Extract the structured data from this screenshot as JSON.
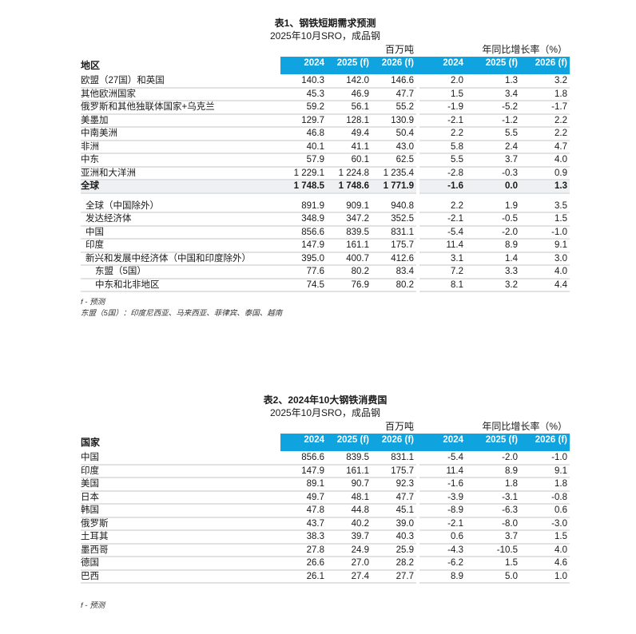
{
  "table1": {
    "title": "表1、钢铁短期需求预测",
    "subtitle": "2025年10月SRO，成品钢",
    "unit_volume": "百万吨",
    "unit_growth": "年同比增长率（%）",
    "label_header": "地区",
    "columns": [
      "2024",
      "2025 (f)",
      "2026 (f)",
      "2024",
      "2025 (f)",
      "2026 (f)"
    ],
    "rows": [
      {
        "label": "欧盟（27国）和英国",
        "values": [
          "140.3",
          "142.0",
          "146.6",
          "2.0",
          "1.3",
          "3.2"
        ]
      },
      {
        "label": "其他欧洲国家",
        "values": [
          "45.3",
          "46.9",
          "47.7",
          "1.5",
          "3.4",
          "1.8"
        ]
      },
      {
        "label": "俄罗斯和其他独联体国家+乌克兰",
        "values": [
          "59.2",
          "56.1",
          "55.2",
          "-1.9",
          "-5.2",
          "-1.7"
        ]
      },
      {
        "label": "美墨加",
        "values": [
          "129.7",
          "128.1",
          "130.9",
          "-2.1",
          "-1.2",
          "2.2"
        ]
      },
      {
        "label": "中南美洲",
        "values": [
          "46.8",
          "49.4",
          "50.4",
          "2.2",
          "5.5",
          "2.2"
        ]
      },
      {
        "label": "非洲",
        "values": [
          "40.1",
          "41.1",
          "43.0",
          "5.8",
          "2.4",
          "4.7"
        ]
      },
      {
        "label": "中东",
        "values": [
          "57.9",
          "60.1",
          "62.5",
          "5.5",
          "3.7",
          "4.0"
        ]
      },
      {
        "label": "亚洲和大洋洲",
        "values": [
          "1 229.1",
          "1 224.8",
          "1 235.4",
          "-2.8",
          "-0.3",
          "0.9"
        ]
      },
      {
        "label": "全球",
        "values": [
          "1 748.5",
          "1 748.6",
          "1 771.9",
          "-1.6",
          "0.0",
          "1.3"
        ],
        "total": true
      },
      {
        "label": "全球（中国除外）",
        "values": [
          "891.9",
          "909.1",
          "940.8",
          "2.2",
          "1.9",
          "3.5"
        ],
        "indent": 1,
        "spacer": true
      },
      {
        "label": "发达经济体",
        "values": [
          "348.9",
          "347.2",
          "352.5",
          "-2.1",
          "-0.5",
          "1.5"
        ],
        "indent": 1
      },
      {
        "label": "中国",
        "values": [
          "856.6",
          "839.5",
          "831.1",
          "-5.4",
          "-2.0",
          "-1.0"
        ],
        "indent": 1
      },
      {
        "label": "印度",
        "values": [
          "147.9",
          "161.1",
          "175.7",
          "11.4",
          "8.9",
          "9.1"
        ],
        "indent": 1
      },
      {
        "label": "新兴和发展中经济体（中国和印度除外）",
        "values": [
          "395.0",
          "400.7",
          "412.6",
          "3.1",
          "1.4",
          "3.0"
        ],
        "indent": 1
      },
      {
        "label": "东盟（5国）",
        "values": [
          "77.6",
          "80.2",
          "83.4",
          "7.2",
          "3.3",
          "4.0"
        ],
        "indent": 2
      },
      {
        "label": "中东和北非地区",
        "values": [
          "74.5",
          "76.9",
          "80.2",
          "8.1",
          "3.2",
          "4.4"
        ],
        "indent": 2
      }
    ],
    "notes": [
      "f - 预测",
      "东盟（5国）：印度尼西亚、马来西亚、菲律宾、泰国、越南"
    ]
  },
  "table2": {
    "title": "表2、2024年10大钢铁消费国",
    "subtitle": "2025年10月SRO，成品钢",
    "unit_volume": "百万吨",
    "unit_growth": "年同比增长率（%）",
    "label_header": "国家",
    "columns": [
      "2024",
      "2025 (f)",
      "2026 (f)",
      "2024",
      "2025 (f)",
      "2026 (f)"
    ],
    "rows": [
      {
        "label": "中国",
        "values": [
          "856.6",
          "839.5",
          "831.1",
          "-5.4",
          "-2.0",
          "-1.0"
        ]
      },
      {
        "label": "印度",
        "values": [
          "147.9",
          "161.1",
          "175.7",
          "11.4",
          "8.9",
          "9.1"
        ]
      },
      {
        "label": "美国",
        "values": [
          "89.1",
          "90.7",
          "92.3",
          "-1.6",
          "1.8",
          "1.8"
        ]
      },
      {
        "label": "日本",
        "values": [
          "49.7",
          "48.1",
          "47.7",
          "-3.9",
          "-3.1",
          "-0.8"
        ]
      },
      {
        "label": "韩国",
        "values": [
          "47.8",
          "44.8",
          "45.1",
          "-8.9",
          "-6.3",
          "0.6"
        ]
      },
      {
        "label": "俄罗斯",
        "values": [
          "43.7",
          "40.2",
          "39.0",
          "-2.1",
          "-8.0",
          "-3.0"
        ]
      },
      {
        "label": "土耳其",
        "values": [
          "38.3",
          "39.7",
          "40.3",
          "0.6",
          "3.7",
          "1.5"
        ]
      },
      {
        "label": "墨西哥",
        "values": [
          "27.8",
          "24.9",
          "25.9",
          "-4.3",
          "-10.5",
          "4.0"
        ]
      },
      {
        "label": "德国",
        "values": [
          "26.6",
          "27.0",
          "28.2",
          "-6.2",
          "1.5",
          "4.6"
        ]
      },
      {
        "label": "巴西",
        "values": [
          "26.1",
          "27.4",
          "27.7",
          "8.9",
          "5.0",
          "1.0"
        ]
      }
    ],
    "notes": [
      "f - 预测"
    ]
  },
  "colors": {
    "header_bg": "#0fa3e0",
    "total_bg": "#eef0f1",
    "rule": "#dfe3e6"
  }
}
